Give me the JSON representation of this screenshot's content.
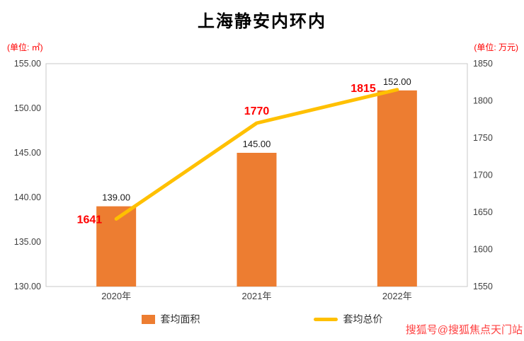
{
  "watermark": {
    "text": "搜狐号@搜狐焦点天门站",
    "color": "#FF4040"
  },
  "colors": {
    "bar_orange": "#ED7D31",
    "line_yellow": "#FFC000",
    "accent_red": "#FF0000",
    "axis_text": "#404040",
    "plot_border": "#C8C8C8"
  },
  "chart_data": {
    "type": "combo-bar-line",
    "title": "上海静安内环内",
    "categories": [
      "2020年",
      "2021年",
      "2022年"
    ],
    "series": [
      {
        "name": "套均面积",
        "type": "bar",
        "axis": "left",
        "values": [
          139,
          145,
          152
        ],
        "labels": [
          "139.00",
          "145.00",
          "152.00"
        ],
        "color": "#ED7D31"
      },
      {
        "name": "套均总价",
        "type": "line",
        "axis": "right",
        "values": [
          1641,
          1770,
          1815
        ],
        "labels": [
          "1641",
          "1770",
          "1815"
        ],
        "color": "#FFC000",
        "label_color": "#FF0000"
      }
    ],
    "left_axis": {
      "unit": "(单位: ㎡)",
      "min": 130,
      "max": 155,
      "step": 5,
      "ticks": [
        "155.00",
        "150.00",
        "145.00",
        "140.00",
        "135.00",
        "130.00"
      ]
    },
    "right_axis": {
      "unit": "(单位: 万元)",
      "min": 1550,
      "max": 1850,
      "step": 50,
      "ticks": [
        "1850",
        "1800",
        "1750",
        "1700",
        "1650",
        "1600",
        "1550"
      ]
    },
    "grid": "off",
    "legend_position": "bottom"
  }
}
